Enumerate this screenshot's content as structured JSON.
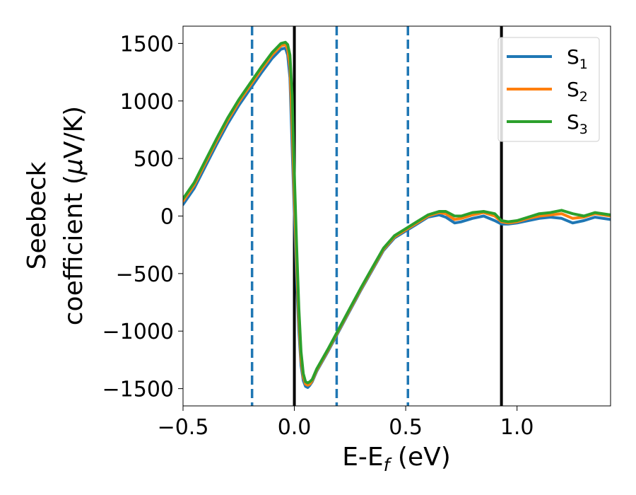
{
  "chart_data": {
    "type": "line",
    "xlabel": "E-E",
    "xlabel_sub": "f",
    "xlabel_unit": " (eV)",
    "ylabel_line1": "Seebeck",
    "ylabel_line2": "coefficient  (",
    "ylabel_mu": "μ",
    "ylabel_unit": "V/K)",
    "xlim": [
      -0.5,
      1.42
    ],
    "ylim": [
      -1650,
      1650
    ],
    "xticks": [
      -0.5,
      0.0,
      0.5,
      1.0
    ],
    "xtick_labels": [
      "−0.5",
      "0.0",
      "0.5",
      "1.0"
    ],
    "yticks": [
      -1500,
      -1000,
      -500,
      0,
      500,
      1000,
      1500
    ],
    "ytick_labels": [
      "−1500",
      "−1000",
      "−500",
      "0",
      "500",
      "1000",
      "1500"
    ],
    "grid": false,
    "legend_position": "top-right",
    "vlines_solid": [
      0.0,
      0.93
    ],
    "vlines_dashed": [
      -0.19,
      0.19,
      0.51
    ],
    "vline_solid_color": "#000000",
    "vline_dashed_color": "#1f77b4",
    "series": [
      {
        "name": "S",
        "sub": "1",
        "color": "#1f77b4",
        "x": [
          -0.5,
          -0.45,
          -0.4,
          -0.35,
          -0.3,
          -0.25,
          -0.2,
          -0.15,
          -0.1,
          -0.06,
          -0.04,
          -0.03,
          -0.02,
          -0.01,
          0.0,
          0.01,
          0.02,
          0.03,
          0.04,
          0.05,
          0.06,
          0.07,
          0.08,
          0.1,
          0.15,
          0.2,
          0.25,
          0.3,
          0.35,
          0.4,
          0.45,
          0.5,
          0.55,
          0.6,
          0.65,
          0.68,
          0.72,
          0.75,
          0.8,
          0.85,
          0.9,
          0.93,
          0.96,
          1.0,
          1.05,
          1.1,
          1.15,
          1.2,
          1.25,
          1.3,
          1.35,
          1.42
        ],
        "y": [
          100,
          240,
          430,
          620,
          800,
          960,
          1100,
          1240,
          1370,
          1450,
          1460,
          1400,
          1200,
          600,
          0,
          -550,
          -1000,
          -1300,
          -1430,
          -1480,
          -1490,
          -1470,
          -1440,
          -1350,
          -1180,
          -1000,
          -820,
          -640,
          -470,
          -300,
          -190,
          -130,
          -70,
          -10,
          10,
          -10,
          -60,
          -50,
          -20,
          0,
          -40,
          -70,
          -70,
          -60,
          -40,
          -20,
          -10,
          -20,
          -60,
          -40,
          -10,
          -30
        ]
      },
      {
        "name": "S",
        "sub": "2",
        "color": "#ff7f0e",
        "x": [
          -0.5,
          -0.45,
          -0.4,
          -0.35,
          -0.3,
          -0.25,
          -0.2,
          -0.15,
          -0.1,
          -0.06,
          -0.04,
          -0.03,
          -0.02,
          -0.01,
          0.0,
          0.01,
          0.02,
          0.03,
          0.04,
          0.05,
          0.06,
          0.07,
          0.08,
          0.1,
          0.15,
          0.2,
          0.25,
          0.3,
          0.35,
          0.4,
          0.45,
          0.5,
          0.55,
          0.6,
          0.65,
          0.68,
          0.72,
          0.75,
          0.8,
          0.85,
          0.9,
          0.93,
          0.96,
          1.0,
          1.05,
          1.1,
          1.15,
          1.2,
          1.25,
          1.3,
          1.35,
          1.42
        ],
        "y": [
          130,
          270,
          460,
          650,
          830,
          990,
          1130,
          1270,
          1400,
          1480,
          1490,
          1450,
          1300,
          800,
          150,
          -400,
          -900,
          -1250,
          -1400,
          -1460,
          -1470,
          -1460,
          -1430,
          -1340,
          -1170,
          -990,
          -810,
          -630,
          -460,
          -290,
          -180,
          -120,
          -60,
          0,
          30,
          20,
          -30,
          -20,
          10,
          30,
          0,
          -50,
          -60,
          -50,
          -20,
          0,
          10,
          20,
          -20,
          -10,
          20,
          0
        ]
      },
      {
        "name": "S",
        "sub": "3",
        "color": "#2ca02c",
        "x": [
          -0.5,
          -0.45,
          -0.4,
          -0.35,
          -0.3,
          -0.25,
          -0.2,
          -0.15,
          -0.1,
          -0.06,
          -0.04,
          -0.03,
          -0.02,
          -0.01,
          0.0,
          0.01,
          0.02,
          0.03,
          0.04,
          0.05,
          0.06,
          0.07,
          0.08,
          0.1,
          0.15,
          0.2,
          0.25,
          0.3,
          0.35,
          0.4,
          0.45,
          0.5,
          0.55,
          0.6,
          0.65,
          0.68,
          0.72,
          0.75,
          0.8,
          0.85,
          0.9,
          0.93,
          0.96,
          1.0,
          1.05,
          1.1,
          1.15,
          1.2,
          1.25,
          1.3,
          1.35,
          1.42
        ],
        "y": [
          150,
          290,
          480,
          670,
          850,
          1010,
          1150,
          1290,
          1420,
          1500,
          1510,
          1490,
          1400,
          1050,
          350,
          -250,
          -800,
          -1180,
          -1370,
          -1440,
          -1450,
          -1440,
          -1420,
          -1330,
          -1160,
          -980,
          -800,
          -620,
          -450,
          -280,
          -170,
          -110,
          -50,
          10,
          40,
          40,
          0,
          0,
          30,
          40,
          20,
          -40,
          -50,
          -40,
          -10,
          20,
          30,
          50,
          20,
          0,
          30,
          10
        ]
      }
    ]
  }
}
